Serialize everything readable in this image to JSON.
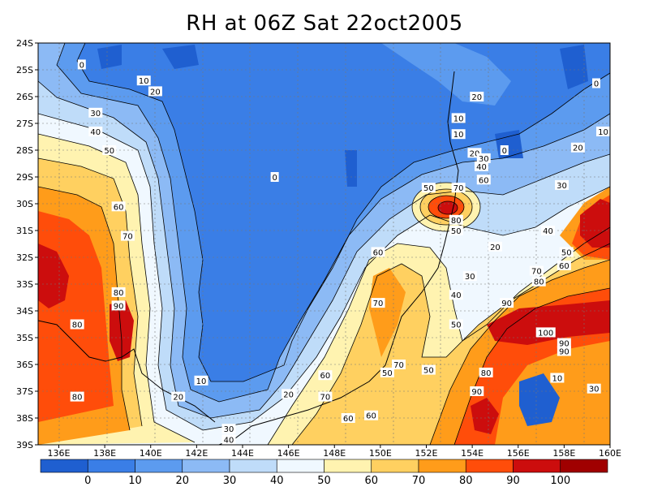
{
  "title": "RH at 06Z Sat 22oct2005",
  "lat_ticks": [
    "24S",
    "25S",
    "26S",
    "27S",
    "28S",
    "29S",
    "30S",
    "31S",
    "32S",
    "33S",
    "34S",
    "35S",
    "36S",
    "37S",
    "38S",
    "39S"
  ],
  "lon_ticks": [
    "136E",
    "138E",
    "140E",
    "142E",
    "144E",
    "146E",
    "148E",
    "150E",
    "152E",
    "154E",
    "156E",
    "158E",
    "160E"
  ],
  "colorbar": {
    "labels": [
      "0",
      "10",
      "20",
      "30",
      "40",
      "50",
      "60",
      "70",
      "80",
      "90",
      "100"
    ],
    "colors": [
      "#1f5fd0",
      "#3a7ee6",
      "#5c9bef",
      "#8cbaf5",
      "#bfdcf9",
      "#f0f8ff",
      "#fff3b0",
      "#ffd060",
      "#ff9c1a",
      "#ff4d0a",
      "#cc0d0d",
      "#a00000"
    ]
  },
  "contour_labels": [
    {
      "text": "0",
      "lon": 137.0,
      "lat": -24.8
    },
    {
      "text": "10",
      "lon": 139.7,
      "lat": -25.4
    },
    {
      "text": "20",
      "lon": 140.2,
      "lat": -25.8
    },
    {
      "text": "30",
      "lon": 137.6,
      "lat": -26.6
    },
    {
      "text": "40",
      "lon": 137.6,
      "lat": -27.3
    },
    {
      "text": "50",
      "lon": 138.2,
      "lat": -28.0
    },
    {
      "text": "60",
      "lon": 138.6,
      "lat": -30.1
    },
    {
      "text": "70",
      "lon": 139.0,
      "lat": -31.2
    },
    {
      "text": "80",
      "lon": 138.6,
      "lat": -33.3
    },
    {
      "text": "90",
      "lon": 138.6,
      "lat": -33.8
    },
    {
      "text": "80",
      "lon": 136.8,
      "lat": -34.5
    },
    {
      "text": "80",
      "lon": 136.8,
      "lat": -37.2
    },
    {
      "text": "10",
      "lon": 142.2,
      "lat": -36.6
    },
    {
      "text": "20",
      "lon": 141.2,
      "lat": -37.2
    },
    {
      "text": "30",
      "lon": 143.4,
      "lat": -38.4
    },
    {
      "text": "40",
      "lon": 143.4,
      "lat": -38.8
    },
    {
      "text": "20",
      "lon": 146.0,
      "lat": -37.1
    },
    {
      "text": "60",
      "lon": 147.6,
      "lat": -36.4
    },
    {
      "text": "70",
      "lon": 147.6,
      "lat": -37.2
    },
    {
      "text": "60",
      "lon": 148.6,
      "lat": -38.0
    },
    {
      "text": "60",
      "lon": 149.6,
      "lat": -37.9
    },
    {
      "text": "50",
      "lon": 150.3,
      "lat": -36.3
    },
    {
      "text": "70",
      "lon": 150.8,
      "lat": -36.0
    },
    {
      "text": "50",
      "lon": 152.1,
      "lat": -36.2
    },
    {
      "text": "70",
      "lon": 149.9,
      "lat": -33.7
    },
    {
      "text": "60",
      "lon": 149.9,
      "lat": -31.8
    },
    {
      "text": "50",
      "lon": 152.1,
      "lat": -29.4
    },
    {
      "text": "70",
      "lon": 153.4,
      "lat": -29.4
    },
    {
      "text": "80",
      "lon": 153.3,
      "lat": -30.6
    },
    {
      "text": "50",
      "lon": 153.3,
      "lat": -31.0
    },
    {
      "text": "30",
      "lon": 153.9,
      "lat": -32.7
    },
    {
      "text": "40",
      "lon": 153.3,
      "lat": -33.4
    },
    {
      "text": "50",
      "lon": 153.3,
      "lat": -34.5
    },
    {
      "text": "20",
      "lon": 155.0,
      "lat": -31.6
    },
    {
      "text": "0",
      "lon": 145.4,
      "lat": -29.0
    },
    {
      "text": "20",
      "lon": 154.2,
      "lat": -26.0
    },
    {
      "text": "10",
      "lon": 153.4,
      "lat": -26.8
    },
    {
      "text": "10",
      "lon": 153.4,
      "lat": -27.4
    },
    {
      "text": "20",
      "lon": 154.1,
      "lat": -28.1
    },
    {
      "text": "30",
      "lon": 154.5,
      "lat": -28.3
    },
    {
      "text": "40",
      "lon": 154.4,
      "lat": -28.6
    },
    {
      "text": "60",
      "lon": 154.5,
      "lat": -29.1
    },
    {
      "text": "0",
      "lon": 155.4,
      "lat": -28.0
    },
    {
      "text": "0",
      "lon": 159.4,
      "lat": -25.5
    },
    {
      "text": "10",
      "lon": 159.7,
      "lat": -27.3
    },
    {
      "text": "20",
      "lon": 158.6,
      "lat": -27.9
    },
    {
      "text": "30",
      "lon": 157.9,
      "lat": -29.3
    },
    {
      "text": "40",
      "lon": 157.3,
      "lat": -31.0
    },
    {
      "text": "50",
      "lon": 158.1,
      "lat": -31.8
    },
    {
      "text": "60",
      "lon": 158.0,
      "lat": -32.3
    },
    {
      "text": "70",
      "lon": 156.8,
      "lat": -32.5
    },
    {
      "text": "80",
      "lon": 156.9,
      "lat": -32.9
    },
    {
      "text": "90",
      "lon": 155.5,
      "lat": -33.7
    },
    {
      "text": "100",
      "lon": 157.2,
      "lat": -34.8
    },
    {
      "text": "90",
      "lon": 158.0,
      "lat": -35.2
    },
    {
      "text": "90",
      "lon": 158.0,
      "lat": -35.5
    },
    {
      "text": "80",
      "lon": 154.6,
      "lat": -36.3
    },
    {
      "text": "90",
      "lon": 154.2,
      "lat": -37.0
    },
    {
      "text": "10",
      "lon": 157.7,
      "lat": -36.5
    },
    {
      "text": "30",
      "lon": 159.3,
      "lat": -36.9
    }
  ]
}
